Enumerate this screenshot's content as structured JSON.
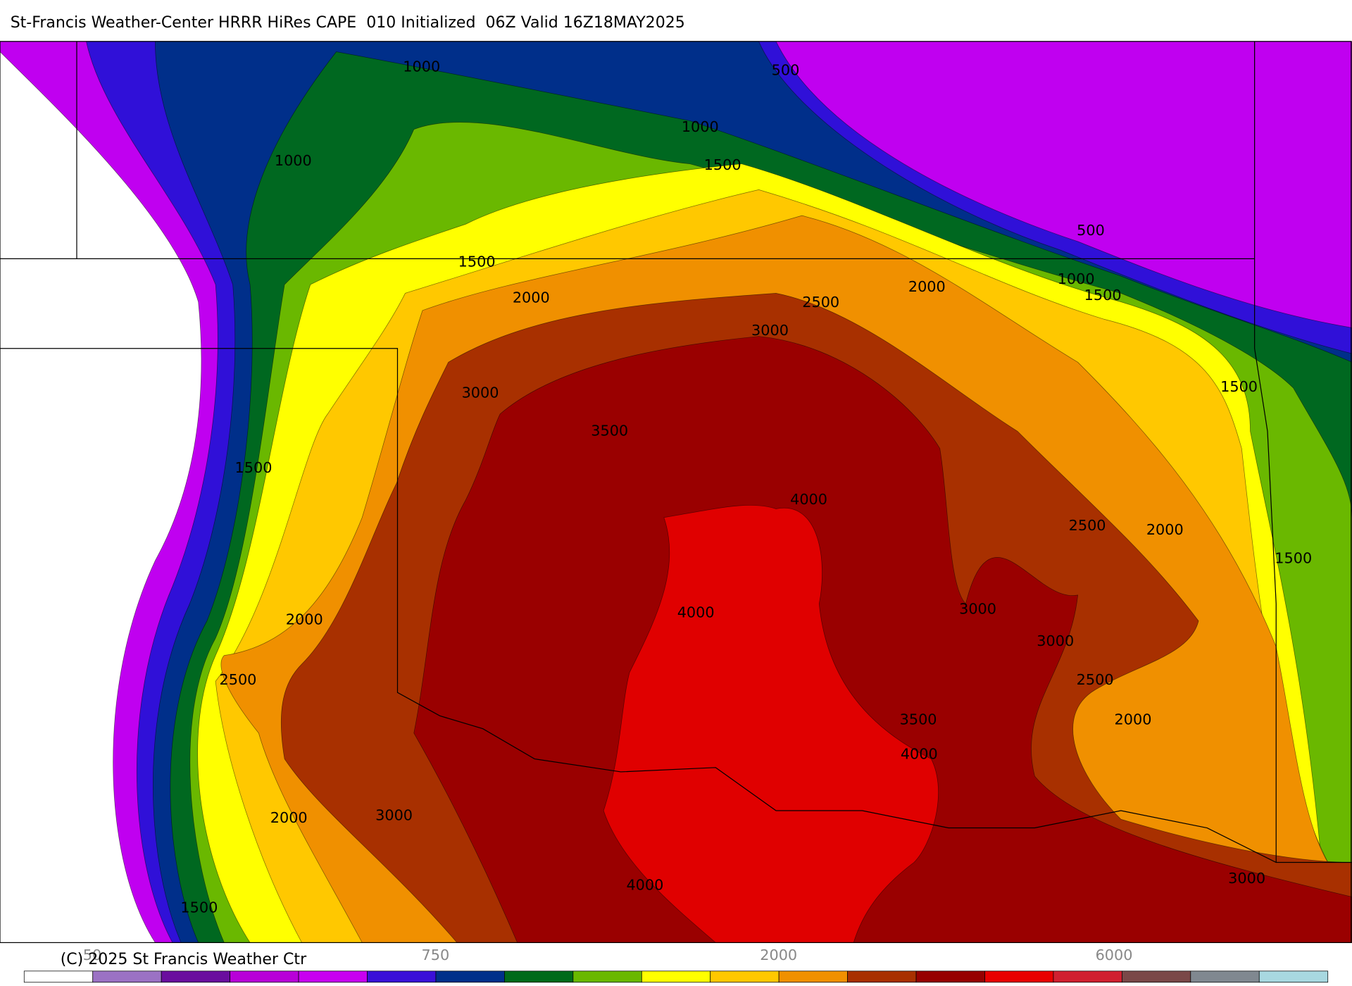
{
  "title": "St-Francis Weather-Center HRRR HiRes CAPE  010 Initialized  06Z Valid 16Z18MAY2025",
  "contour_labels": [
    "1000",
    "500",
    "1000",
    "1000",
    "1500",
    "500",
    "1500",
    "1000",
    "2000",
    "1500",
    "2000",
    "2500",
    "3000",
    "1500",
    "3000",
    "3500",
    "1500",
    "4000",
    "2500",
    "2000",
    "1500",
    "3000",
    "4000",
    "2000",
    "3000",
    "2500",
    "2500",
    "3500",
    "2000",
    "4000",
    "3000",
    "2000",
    "3000",
    "4000",
    "1500"
  ],
  "copyright": "(C) 2025 St Francis Weather Ctr",
  "colorbar": {
    "colors": [
      "#ffffff",
      "#9b72c4",
      "#6a0d9e",
      "#b800d8",
      "#c800f0",
      "#3a10d8",
      "#00308a",
      "#006a1a",
      "#6ab800",
      "#ffff00",
      "#ffc800",
      "#f09000",
      "#a83000",
      "#960000",
      "#e80000",
      "#d02030",
      "#7a4848",
      "#808890",
      "#a8d8e0"
    ],
    "labels": [
      "50",
      "750",
      "2000",
      "6000"
    ]
  }
}
